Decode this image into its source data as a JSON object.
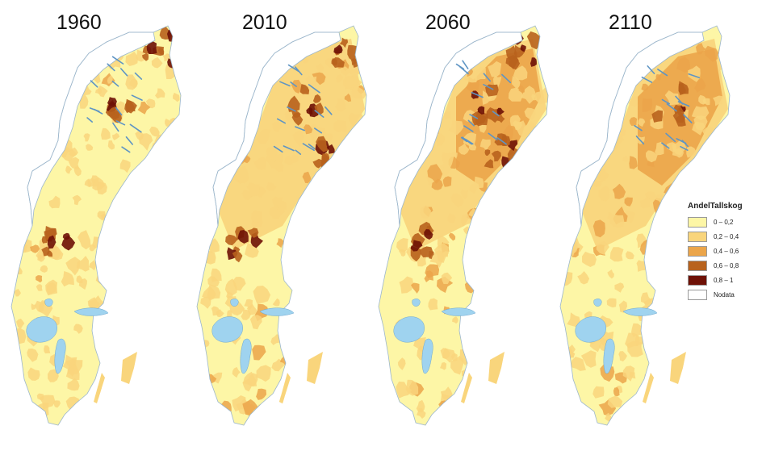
{
  "maps": [
    {
      "year": "1960",
      "dark_cores": 3,
      "medium_spread": 0.2
    },
    {
      "year": "2010",
      "dark_cores": 4,
      "medium_spread": 0.45
    },
    {
      "year": "2060",
      "dark_cores": 4,
      "medium_spread": 0.6
    },
    {
      "year": "2110",
      "dark_cores": 1,
      "medium_spread": 0.55
    }
  ],
  "legend": {
    "title": "AndelTallskog",
    "items": [
      {
        "label": "0 – 0,2",
        "color": "#fdf6a6"
      },
      {
        "label": "0,2 – 0,4",
        "color": "#f9d57c"
      },
      {
        "label": "0,4 – 0,6",
        "color": "#eba54a"
      },
      {
        "label": "0,6 – 0,8",
        "color": "#b8621d"
      },
      {
        "label": "0,8 – 1",
        "color": "#6e1106"
      },
      {
        "label": "Nodata",
        "color": "#ffffff"
      }
    ]
  },
  "colors": {
    "water": "#9fd3ef",
    "outline": "#9db7cc"
  }
}
